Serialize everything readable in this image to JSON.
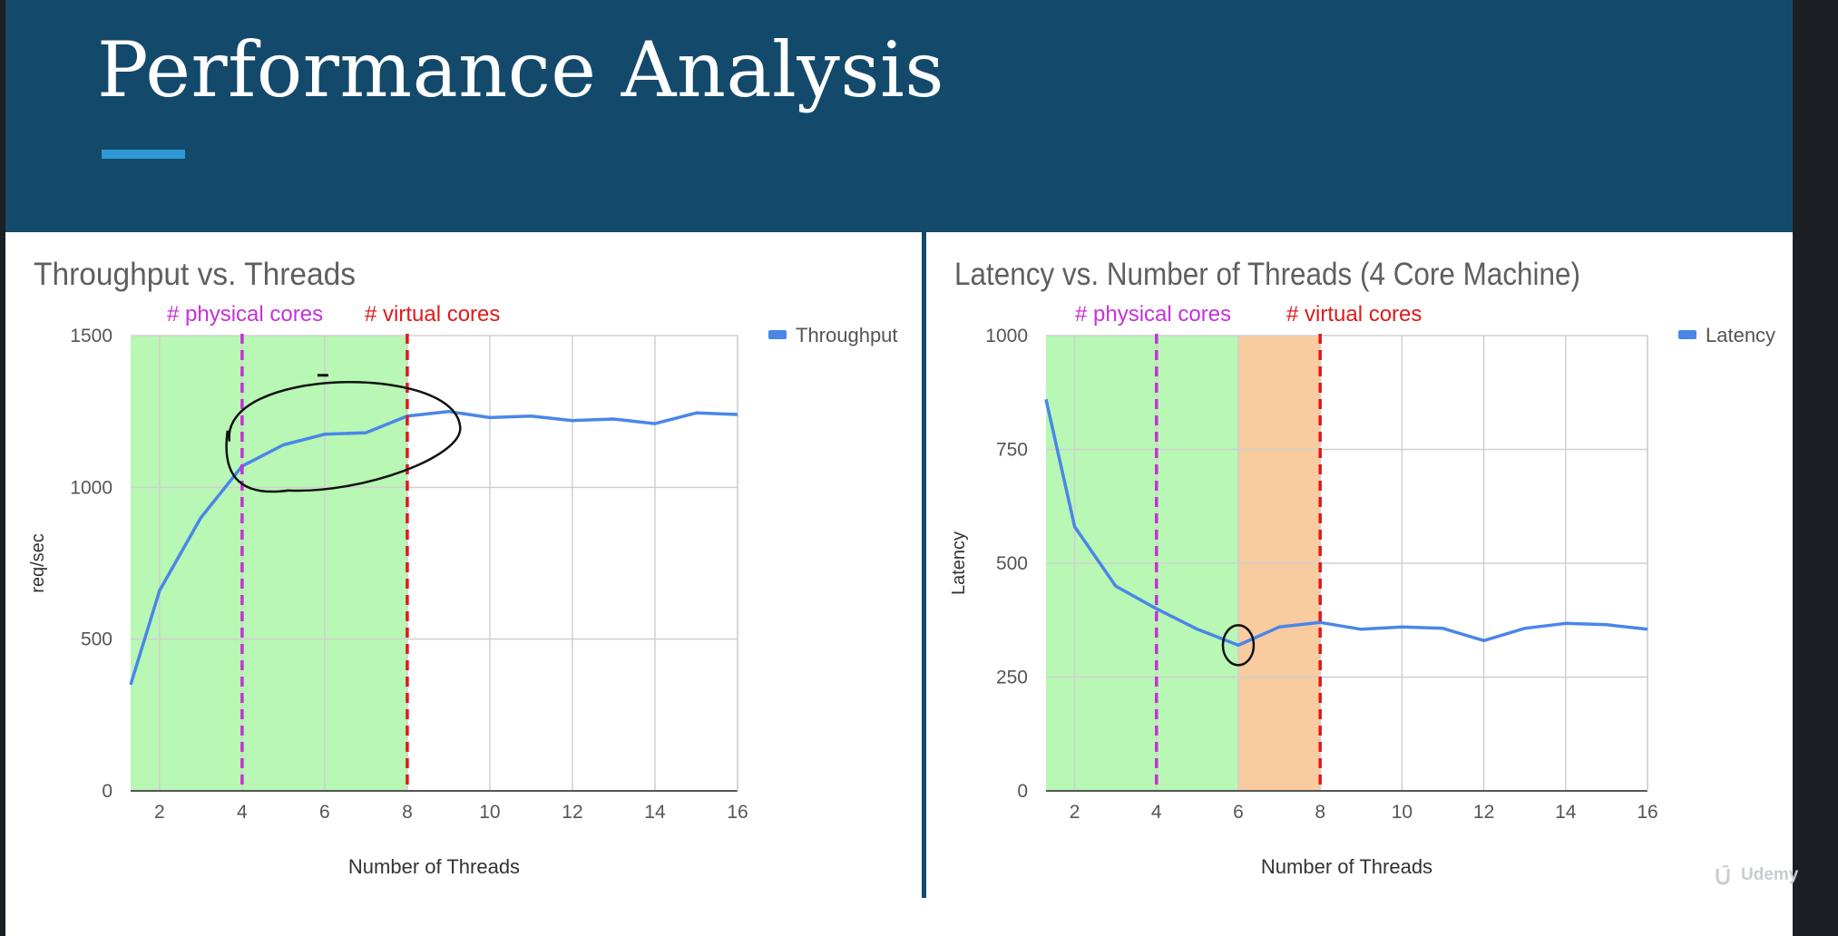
{
  "slide": {
    "title": "Performance Analysis",
    "colors": {
      "header": "#134a6b",
      "accent_bar": "#2f98d6"
    },
    "watermark": "Udemy"
  },
  "chart_data": [
    {
      "type": "line",
      "title": "Throughput vs. Threads",
      "xlabel": "Number of Threads",
      "ylabel": "req/sec",
      "x": [
        1.3,
        2,
        3,
        4,
        5,
        6,
        7,
        8,
        9,
        10,
        11,
        12,
        13,
        14,
        15,
        16
      ],
      "series": [
        {
          "name": "Throughput",
          "color": "#4a86e8",
          "values": [
            350,
            660,
            900,
            1070,
            1140,
            1175,
            1180,
            1235,
            1250,
            1230,
            1235,
            1220,
            1225,
            1210,
            1245,
            1240
          ]
        }
      ],
      "xlim": [
        1.3,
        16
      ],
      "ylim": [
        0,
        1500
      ],
      "xticks": [
        2,
        4,
        6,
        8,
        10,
        12,
        14,
        16
      ],
      "yticks": [
        0,
        500,
        1000,
        1500
      ],
      "grid": true,
      "legend": "top-right",
      "shaded_regions": [
        {
          "from": 1.3,
          "to": 8,
          "color": "#b8f7b4"
        }
      ],
      "reference_lines": [
        {
          "x": 4,
          "label": "# physical cores",
          "color": "#c532d6"
        },
        {
          "x": 8,
          "label": "# virtual cores",
          "color": "#e01a1a"
        }
      ],
      "annotation": {
        "shape": "hand-drawn ellipse",
        "around_x": [
          4,
          8
        ]
      }
    },
    {
      "type": "line",
      "title": "Latency vs. Number of Threads (4 Core Machine)",
      "xlabel": "Number of Threads",
      "ylabel": "Latency",
      "x": [
        1.3,
        2,
        3,
        4,
        5,
        6,
        7,
        8,
        9,
        10,
        11,
        12,
        13,
        14,
        15,
        16
      ],
      "series": [
        {
          "name": "Latency",
          "color": "#4a86e8",
          "values": [
            860,
            580,
            450,
            400,
            355,
            320,
            360,
            370,
            355,
            360,
            357,
            330,
            357,
            368,
            365,
            355
          ]
        }
      ],
      "xlim": [
        1.3,
        16
      ],
      "ylim": [
        0,
        1000
      ],
      "xticks": [
        2,
        4,
        6,
        8,
        10,
        12,
        14,
        16
      ],
      "yticks": [
        0,
        250,
        500,
        750,
        1000
      ],
      "grid": true,
      "legend": "top-right",
      "shaded_regions": [
        {
          "from": 1.3,
          "to": 6,
          "color": "#b8f7b4"
        },
        {
          "from": 6,
          "to": 8,
          "color": "#f8cc9e"
        }
      ],
      "reference_lines": [
        {
          "x": 4,
          "label": "# physical cores",
          "color": "#c532d6"
        },
        {
          "x": 8,
          "label": "# virtual cores",
          "color": "#e01a1a"
        }
      ],
      "annotation": {
        "shape": "hand-drawn circle",
        "around_x": 6
      }
    }
  ]
}
